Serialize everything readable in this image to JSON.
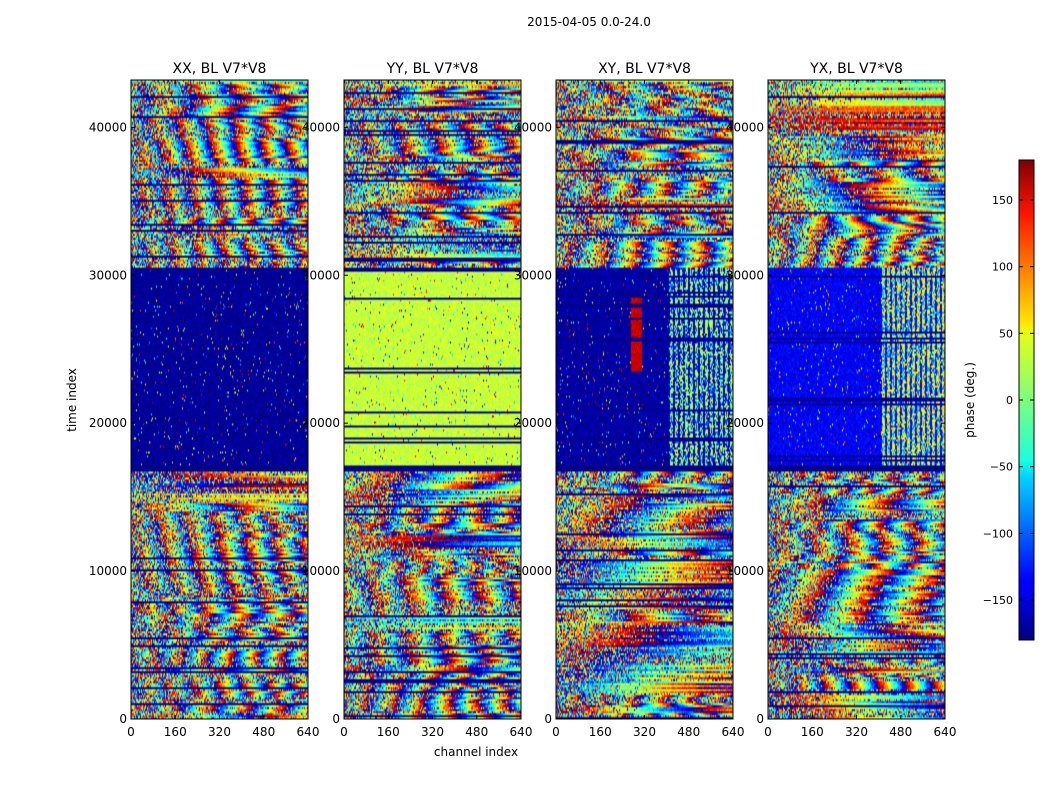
{
  "figure": {
    "suptitle": "2015-04-05 0.0-24.0",
    "xlabel": "channel index",
    "ylabel": "time index"
  },
  "chart_data": [
    {
      "type": "heatmap",
      "title": "XX, BL V7*V8",
      "xlim": [
        0,
        640
      ],
      "ylim": [
        0,
        43200
      ],
      "xticks": [
        0,
        160,
        320,
        480,
        640
      ],
      "yticks": [
        0,
        10000,
        20000,
        30000,
        40000
      ],
      "value_range": [
        -180,
        180
      ],
      "colormap": "jet",
      "pattern": "noisy wrapped phase with fringe bands; low phase near -170 deg between time 17000 and 30500; dark stripe 16700-17200"
    },
    {
      "type": "heatmap",
      "title": "YY, BL V7*V8",
      "xlim": [
        0,
        640
      ],
      "ylim": [
        0,
        43200
      ],
      "xticks": [
        0,
        160,
        320,
        480,
        640
      ],
      "yticks": [
        0,
        10000,
        20000,
        30000,
        40000
      ],
      "value_range": [
        -180,
        180
      ],
      "colormap": "jet",
      "pattern": "noisy wrapped phase; phase near +25 deg between time 17000 and 30500"
    },
    {
      "type": "heatmap",
      "title": "XY, BL V7*V8",
      "xlim": [
        0,
        640
      ],
      "ylim": [
        0,
        43200
      ],
      "xticks": [
        0,
        160,
        320,
        480,
        640
      ],
      "yticks": [
        0,
        10000,
        20000,
        30000,
        40000
      ],
      "value_range": [
        -180,
        180
      ],
      "colormap": "jet",
      "pattern": "noisy wrapped phase; phase near -170 deg between time 17000 and 30500 with red blob near channel 290 and vertical striping from channel 410"
    },
    {
      "type": "heatmap",
      "title": "YX, BL V7*V8",
      "xlim": [
        0,
        640
      ],
      "ylim": [
        0,
        43200
      ],
      "xticks": [
        0,
        160,
        320,
        480,
        640
      ],
      "yticks": [
        0,
        10000,
        20000,
        30000,
        40000
      ],
      "value_range": [
        -180,
        180
      ],
      "colormap": "jet",
      "pattern": "noisy wrapped phase; phase near -140 deg between time 17000 and 30500 with vertical striping from channel 410"
    }
  ],
  "colorbar": {
    "label": "phase (deg.)",
    "colormap": "jet",
    "range": [
      -180,
      180
    ],
    "ticks": [
      -150,
      -100,
      -50,
      0,
      50,
      100,
      150
    ],
    "tick_labels": [
      "−150",
      "−100",
      "−50",
      "0",
      "50",
      "100",
      "150"
    ]
  }
}
